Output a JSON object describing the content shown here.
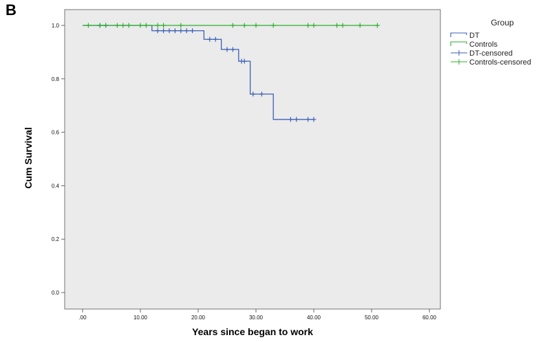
{
  "panel_label": "B",
  "chart_data": {
    "type": "line",
    "title": "",
    "xlabel": "Years since began to work",
    "ylabel": "Cum Survival",
    "xlim": [
      0,
      60
    ],
    "ylim": [
      0,
      1.0
    ],
    "x_ticks": [
      0,
      10,
      20,
      30,
      40,
      50,
      60
    ],
    "x_tick_labels": [
      ".00",
      "10.00",
      "20.00",
      "30.00",
      "40.00",
      "50.00",
      "60.00"
    ],
    "y_ticks": [
      0,
      0.2,
      0.4,
      0.6,
      0.8,
      1.0
    ],
    "y_tick_labels": [
      "0.0",
      "0.2",
      "0.4",
      "0.6",
      "0.8",
      "1.0"
    ],
    "grid": false,
    "legend": {
      "title": "Group",
      "position": "right",
      "entries": [
        "DT",
        "Controls",
        "DT-censored",
        "Controls-censored"
      ]
    },
    "colors": {
      "DT": "#3a5fb5",
      "Controls": "#2bb02b",
      "plot_background": "#ebebeb"
    },
    "series": [
      {
        "name": "DT",
        "style": "step",
        "x": [
          0,
          12,
          21,
          21,
          24,
          27,
          29,
          33,
          40
        ],
        "y": [
          1.0,
          0.98,
          0.98,
          0.948,
          0.91,
          0.866,
          0.743,
          0.648,
          0.648
        ]
      },
      {
        "name": "Controls",
        "style": "step",
        "x": [
          0,
          51
        ],
        "y": [
          1.0,
          1.0
        ]
      },
      {
        "name": "DT-censored",
        "style": "marker",
        "x": [
          3,
          4,
          13,
          14,
          15,
          16,
          17,
          18,
          19,
          22,
          23,
          25,
          26,
          27.5,
          28,
          29.5,
          31,
          36,
          37,
          39,
          40
        ],
        "y": [
          1.0,
          1.0,
          0.98,
          0.98,
          0.98,
          0.98,
          0.98,
          0.98,
          0.98,
          0.948,
          0.948,
          0.91,
          0.91,
          0.866,
          0.866,
          0.743,
          0.743,
          0.648,
          0.648,
          0.648,
          0.648
        ]
      },
      {
        "name": "Controls-censored",
        "style": "marker",
        "x": [
          1,
          3,
          4,
          6,
          7,
          8,
          10,
          11,
          13,
          14,
          17,
          26,
          28,
          30,
          33,
          39,
          40,
          44,
          45,
          48,
          51
        ],
        "y": [
          1.0,
          1.0,
          1.0,
          1.0,
          1.0,
          1.0,
          1.0,
          1.0,
          1.0,
          1.0,
          1.0,
          1.0,
          1.0,
          1.0,
          1.0,
          1.0,
          1.0,
          1.0,
          1.0,
          1.0,
          1.0
        ]
      }
    ]
  }
}
